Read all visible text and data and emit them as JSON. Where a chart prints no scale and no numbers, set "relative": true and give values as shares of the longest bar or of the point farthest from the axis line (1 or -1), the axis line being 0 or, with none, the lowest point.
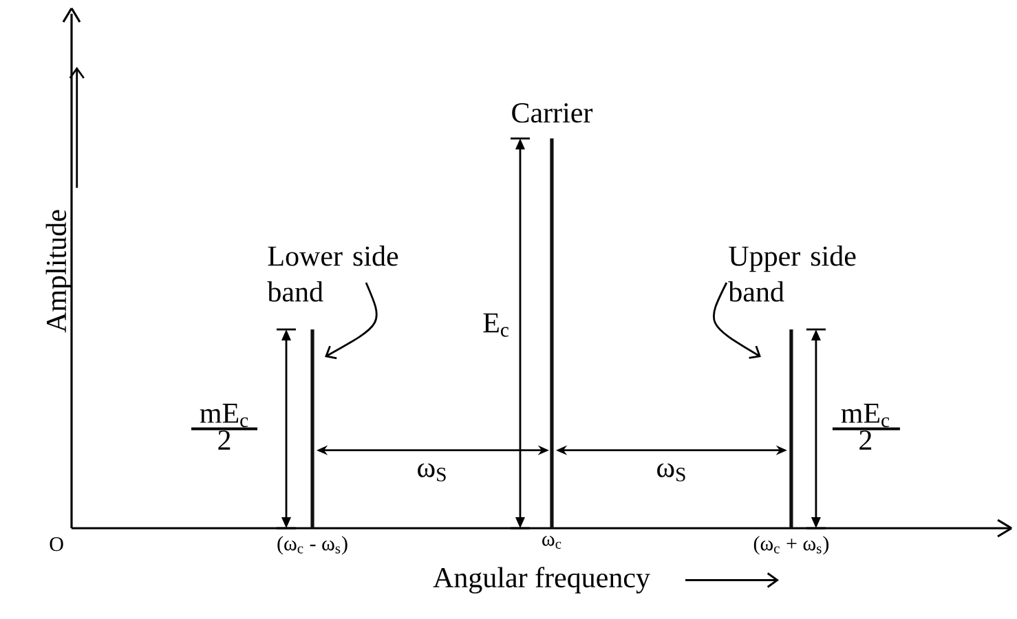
{
  "chart_data": {
    "type": "bar",
    "relative": true,
    "xlabel": "Angular frequency",
    "ylabel": "Amplitude",
    "categories": [
      "(ω$_{c}$ - ω$_{s}$)",
      "ω$_{c}$",
      "(ω$_{c}$ + ω$_{s}$)"
    ],
    "values": [
      0.51,
      1,
      0.51
    ],
    "color": "#111111",
    "annotations": [
      "Carrier",
      "Lower side band",
      "Upper side band",
      "E$_{c}$",
      "mE$_{c}$",
      "2",
      "mE$_{c}$",
      "2",
      "ω$_{S}$",
      "ω$_{S}$",
      "O"
    ]
  }
}
